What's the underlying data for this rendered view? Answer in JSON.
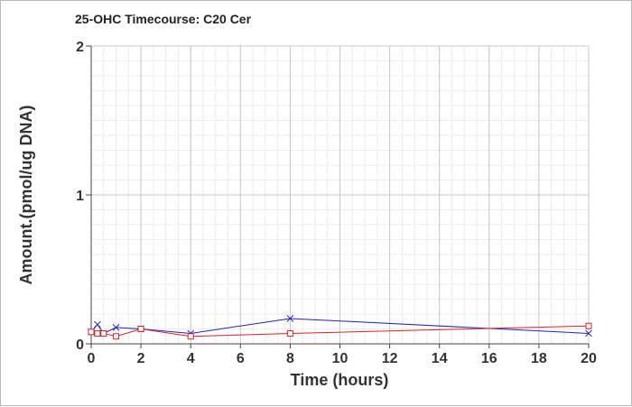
{
  "chart_data": {
    "type": "line",
    "title": "25-OHC Timecourse: C20 Cer",
    "xlabel": "Time (hours)",
    "ylabel": "Amount.(pmol/ug DNA)",
    "xlim": [
      0,
      20
    ],
    "ylim": [
      0,
      2
    ],
    "x_ticks": [
      0,
      2,
      4,
      6,
      8,
      10,
      12,
      14,
      16,
      18,
      20
    ],
    "y_ticks": [
      0,
      1,
      2
    ],
    "grid": true,
    "legend": "none",
    "series": [
      {
        "color": "#2020c8",
        "marker": "x",
        "x": [
          0,
          0.25,
          0.5,
          1,
          2,
          4,
          8,
          20
        ],
        "y": [
          0.08,
          0.13,
          0.07,
          0.11,
          0.1,
          0.07,
          0.17,
          0.07
        ]
      },
      {
        "color": "#e02020",
        "marker": "square",
        "x": [
          0,
          0.25,
          0.5,
          1,
          2,
          4,
          8,
          20
        ],
        "y": [
          0.08,
          0.07,
          0.07,
          0.05,
          0.1,
          0.05,
          0.07,
          0.12
        ]
      }
    ]
  }
}
